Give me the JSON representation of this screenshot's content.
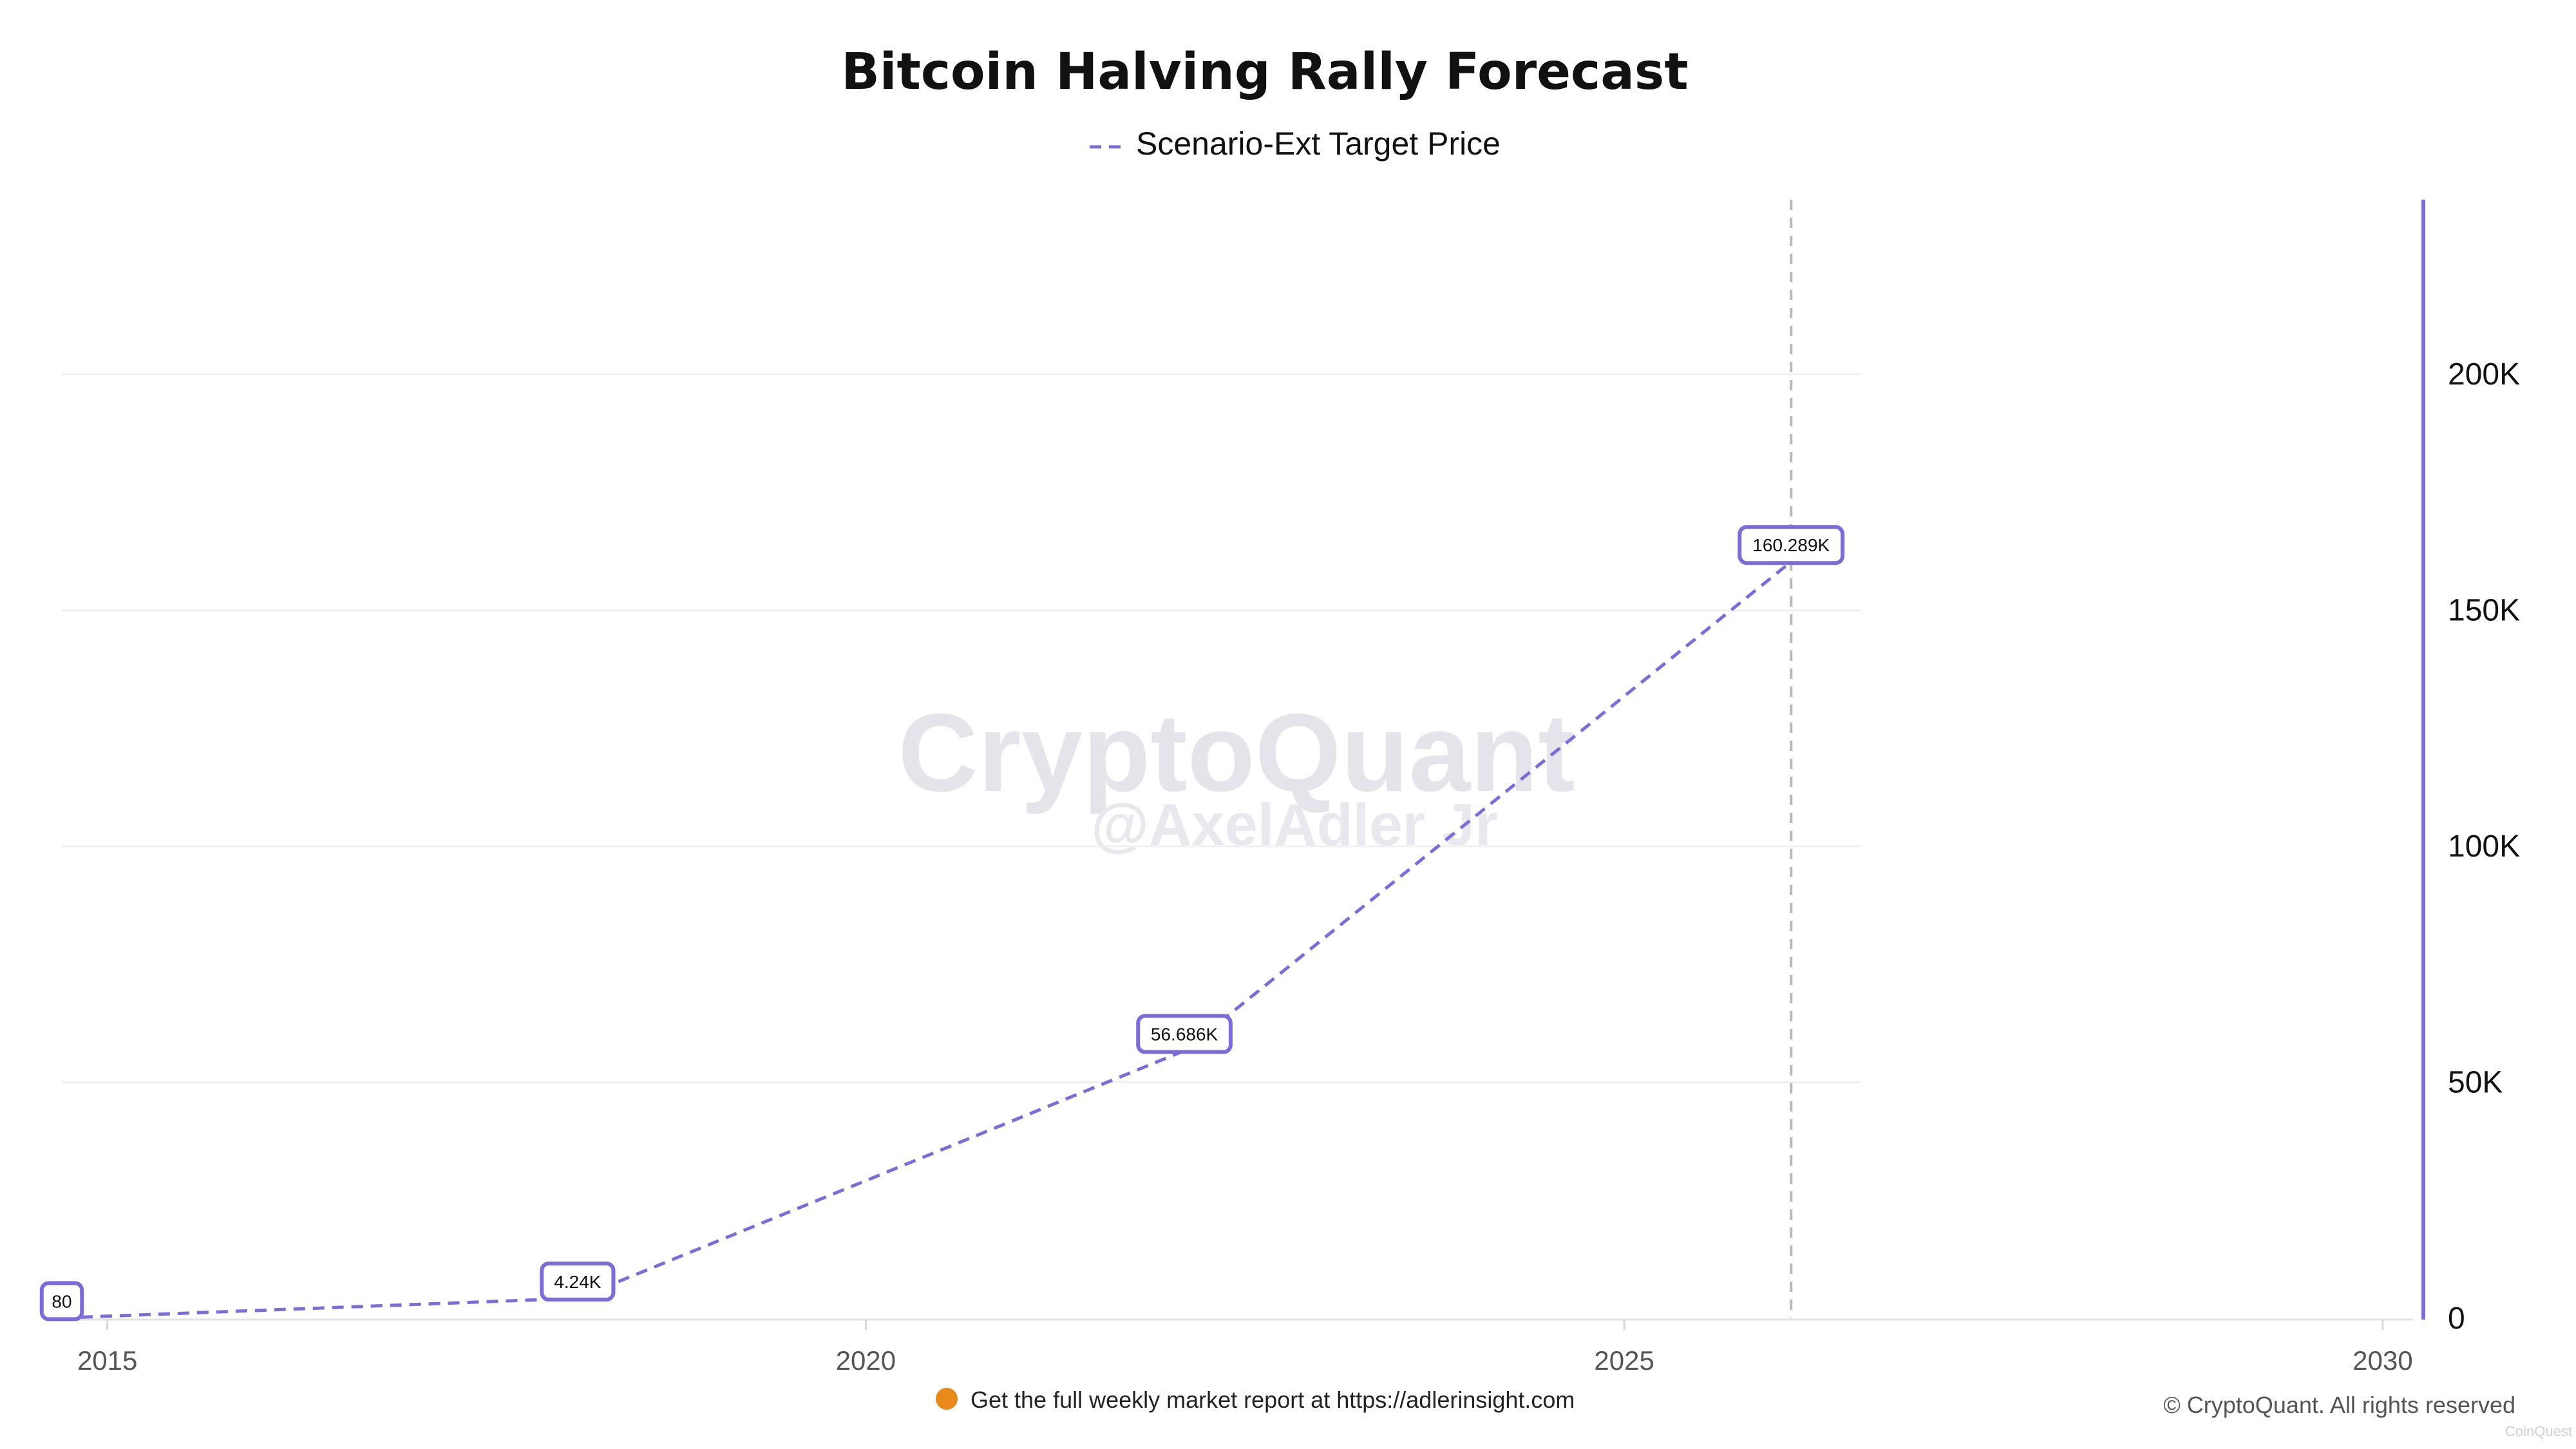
{
  "chart_data": {
    "type": "line",
    "title": "Bitcoin Halving Rally Forecast",
    "legend": {
      "position": "top-center",
      "entries": [
        "Scenario-Ext Target Price"
      ]
    },
    "series": [
      {
        "name": "Scenario-Ext Target Price",
        "color": "#7b6cd9",
        "dash": "dashed",
        "x": [
          2014.7,
          2018.1,
          2022.1,
          2026.1
        ],
        "values": [
          80,
          4240,
          56686,
          160289
        ],
        "labels": [
          "80",
          "4.24K",
          "56.686K",
          "160.289K"
        ]
      }
    ],
    "x_axis": {
      "ticks": [
        2015,
        2020,
        2025,
        2030
      ],
      "tick_labels": [
        "2015",
        "2020",
        "2025",
        "2030"
      ],
      "range": [
        2014.7,
        2030.2
      ]
    },
    "y_axis": {
      "position": "right",
      "ticks": [
        0,
        50000,
        100000,
        150000,
        200000
      ],
      "tick_labels": [
        "0",
        "50K",
        "100K",
        "150K",
        "200K"
      ],
      "range": [
        0,
        237000
      ],
      "axis_color": "#7b6cd9"
    },
    "vertical_marker": {
      "x": 2026.1,
      "style": "dashed",
      "color": "#b8b8b8"
    },
    "grid": {
      "horizontal": true,
      "color": "#f0f0f2"
    }
  },
  "watermark": {
    "brand": "CryptoQuant",
    "handle": "@AxelAdler Jr"
  },
  "footer": {
    "report_text": "Get the full weekly market report at https://adlerinsight.com",
    "report_icon_color": "#e8891a"
  },
  "copyright": "© CryptoQuant. All rights reserved",
  "corner_mark": "CoinQuest"
}
